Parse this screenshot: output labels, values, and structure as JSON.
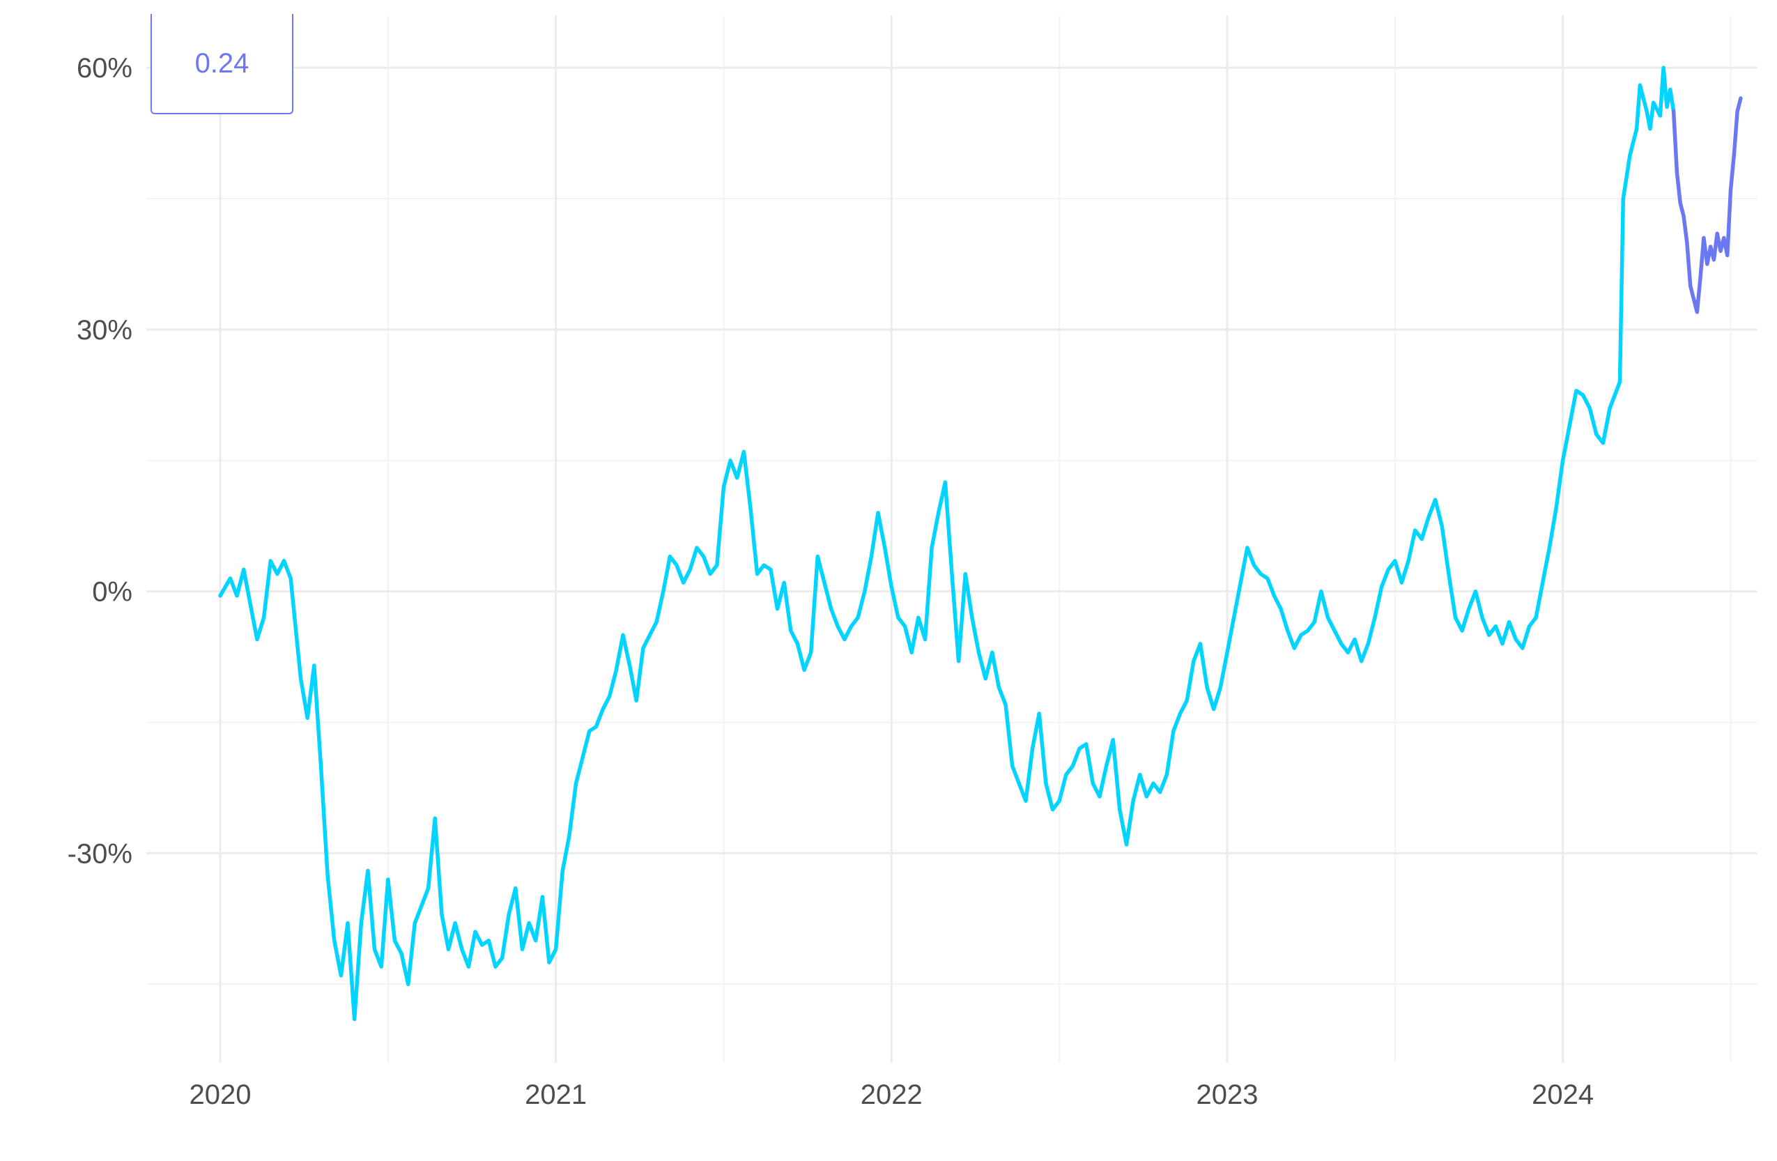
{
  "chart_data": {
    "type": "line",
    "title": "",
    "xlabel": "",
    "ylabel": "",
    "x_ticks": [
      {
        "label": "2020",
        "value": 2020.0
      },
      {
        "label": "2021",
        "value": 2021.0
      },
      {
        "label": "2022",
        "value": 2022.0
      },
      {
        "label": "2023",
        "value": 2023.0
      },
      {
        "label": "2024",
        "value": 2024.0
      }
    ],
    "y_ticks": [
      {
        "label": "-30%",
        "value": -30
      },
      {
        "label": "0%",
        "value": 0
      },
      {
        "label": "30%",
        "value": 30
      },
      {
        "label": "60%",
        "value": 60
      }
    ],
    "xlim": [
      2019.78,
      2024.58
    ],
    "ylim": [
      -54,
      66
    ],
    "grid": true,
    "legend": {
      "value_label": "0.24",
      "position": "top-left"
    },
    "series": [
      {
        "color": "#00d4ff",
        "points": [
          [
            2020.0,
            -0.5
          ],
          [
            2020.03,
            1.5
          ],
          [
            2020.05,
            -0.5
          ],
          [
            2020.07,
            2.5
          ],
          [
            2020.09,
            -1.5
          ],
          [
            2020.11,
            -5.5
          ],
          [
            2020.13,
            -3.0
          ],
          [
            2020.15,
            3.5
          ],
          [
            2020.17,
            2.0
          ],
          [
            2020.19,
            3.5
          ],
          [
            2020.21,
            1.5
          ],
          [
            2020.24,
            -10.0
          ],
          [
            2020.26,
            -14.5
          ],
          [
            2020.28,
            -8.5
          ],
          [
            2020.3,
            -20.0
          ],
          [
            2020.32,
            -32.5
          ],
          [
            2020.34,
            -40.0
          ],
          [
            2020.36,
            -44.0
          ],
          [
            2020.38,
            -38.0
          ],
          [
            2020.4,
            -49.0
          ],
          [
            2020.42,
            -38.0
          ],
          [
            2020.44,
            -32.0
          ],
          [
            2020.46,
            -41.0
          ],
          [
            2020.48,
            -43.0
          ],
          [
            2020.5,
            -33.0
          ],
          [
            2020.52,
            -40.0
          ],
          [
            2020.54,
            -41.5
          ],
          [
            2020.56,
            -45.0
          ],
          [
            2020.58,
            -38.0
          ],
          [
            2020.6,
            -36.0
          ],
          [
            2020.62,
            -34.0
          ],
          [
            2020.64,
            -26.0
          ],
          [
            2020.66,
            -37.0
          ],
          [
            2020.68,
            -41.0
          ],
          [
            2020.7,
            -38.0
          ],
          [
            2020.72,
            -41.0
          ],
          [
            2020.74,
            -43.0
          ],
          [
            2020.76,
            -39.0
          ],
          [
            2020.78,
            -40.5
          ],
          [
            2020.8,
            -40.0
          ],
          [
            2020.82,
            -43.0
          ],
          [
            2020.84,
            -42.0
          ],
          [
            2020.86,
            -37.0
          ],
          [
            2020.88,
            -34.0
          ],
          [
            2020.9,
            -41.0
          ],
          [
            2020.92,
            -38.0
          ],
          [
            2020.94,
            -40.0
          ],
          [
            2020.96,
            -35.0
          ],
          [
            2020.98,
            -42.5
          ],
          [
            2021.0,
            -41.0
          ],
          [
            2021.02,
            -32.0
          ],
          [
            2021.04,
            -28.0
          ],
          [
            2021.06,
            -22.0
          ],
          [
            2021.08,
            -19.0
          ],
          [
            2021.1,
            -16.0
          ],
          [
            2021.12,
            -15.5
          ],
          [
            2021.14,
            -13.5
          ],
          [
            2021.16,
            -12.0
          ],
          [
            2021.18,
            -9.0
          ],
          [
            2021.2,
            -5.0
          ],
          [
            2021.22,
            -8.5
          ],
          [
            2021.24,
            -12.5
          ],
          [
            2021.26,
            -6.5
          ],
          [
            2021.28,
            -5.0
          ],
          [
            2021.3,
            -3.5
          ],
          [
            2021.32,
            0.0
          ],
          [
            2021.34,
            4.0
          ],
          [
            2021.36,
            3.0
          ],
          [
            2021.38,
            1.0
          ],
          [
            2021.4,
            2.5
          ],
          [
            2021.42,
            5.0
          ],
          [
            2021.44,
            4.0
          ],
          [
            2021.46,
            2.0
          ],
          [
            2021.48,
            3.0
          ],
          [
            2021.5,
            12.0
          ],
          [
            2021.52,
            15.0
          ],
          [
            2021.54,
            13.0
          ],
          [
            2021.56,
            16.0
          ],
          [
            2021.58,
            9.5
          ],
          [
            2021.6,
            2.0
          ],
          [
            2021.62,
            3.0
          ],
          [
            2021.64,
            2.5
          ],
          [
            2021.66,
            -2.0
          ],
          [
            2021.68,
            1.0
          ],
          [
            2021.7,
            -4.5
          ],
          [
            2021.72,
            -6.0
          ],
          [
            2021.74,
            -9.0
          ],
          [
            2021.76,
            -7.0
          ],
          [
            2021.78,
            4.0
          ],
          [
            2021.8,
            1.0
          ],
          [
            2021.82,
            -2.0
          ],
          [
            2021.84,
            -4.0
          ],
          [
            2021.86,
            -5.5
          ],
          [
            2021.88,
            -4.0
          ],
          [
            2021.9,
            -3.0
          ],
          [
            2021.92,
            0.0
          ],
          [
            2021.94,
            4.0
          ],
          [
            2021.96,
            9.0
          ],
          [
            2021.98,
            5.0
          ],
          [
            2022.0,
            0.5
          ],
          [
            2022.02,
            -3.0
          ],
          [
            2022.04,
            -4.0
          ],
          [
            2022.06,
            -7.0
          ],
          [
            2022.08,
            -3.0
          ],
          [
            2022.1,
            -5.5
          ],
          [
            2022.12,
            5.0
          ],
          [
            2022.14,
            9.0
          ],
          [
            2022.16,
            12.5
          ],
          [
            2022.18,
            2.0
          ],
          [
            2022.2,
            -8.0
          ],
          [
            2022.22,
            2.0
          ],
          [
            2022.24,
            -3.0
          ],
          [
            2022.26,
            -7.0
          ],
          [
            2022.28,
            -10.0
          ],
          [
            2022.3,
            -7.0
          ],
          [
            2022.32,
            -11.0
          ],
          [
            2022.34,
            -13.0
          ],
          [
            2022.36,
            -20.0
          ],
          [
            2022.38,
            -22.0
          ],
          [
            2022.4,
            -24.0
          ],
          [
            2022.42,
            -18.0
          ],
          [
            2022.44,
            -14.0
          ],
          [
            2022.46,
            -22.0
          ],
          [
            2022.48,
            -25.0
          ],
          [
            2022.5,
            -24.0
          ],
          [
            2022.52,
            -21.0
          ],
          [
            2022.54,
            -20.0
          ],
          [
            2022.56,
            -18.0
          ],
          [
            2022.58,
            -17.5
          ],
          [
            2022.6,
            -22.0
          ],
          [
            2022.62,
            -23.5
          ],
          [
            2022.64,
            -20.0
          ],
          [
            2022.66,
            -17.0
          ],
          [
            2022.68,
            -25.0
          ],
          [
            2022.7,
            -29.0
          ],
          [
            2022.72,
            -24.0
          ],
          [
            2022.74,
            -21.0
          ],
          [
            2022.76,
            -23.5
          ],
          [
            2022.78,
            -22.0
          ],
          [
            2022.8,
            -23.0
          ],
          [
            2022.82,
            -21.0
          ],
          [
            2022.84,
            -16.0
          ],
          [
            2022.86,
            -14.0
          ],
          [
            2022.88,
            -12.5
          ],
          [
            2022.9,
            -8.0
          ],
          [
            2022.92,
            -6.0
          ],
          [
            2022.94,
            -11.0
          ],
          [
            2022.96,
            -13.5
          ],
          [
            2022.98,
            -11.0
          ],
          [
            2023.0,
            -7.0
          ],
          [
            2023.02,
            -3.0
          ],
          [
            2023.04,
            1.0
          ],
          [
            2023.06,
            5.0
          ],
          [
            2023.08,
            3.0
          ],
          [
            2023.1,
            2.0
          ],
          [
            2023.12,
            1.5
          ],
          [
            2023.14,
            -0.5
          ],
          [
            2023.16,
            -2.0
          ],
          [
            2023.18,
            -4.5
          ],
          [
            2023.2,
            -6.5
          ],
          [
            2023.22,
            -5.0
          ],
          [
            2023.24,
            -4.5
          ],
          [
            2023.26,
            -3.5
          ],
          [
            2023.28,
            0.0
          ],
          [
            2023.3,
            -3.0
          ],
          [
            2023.32,
            -4.5
          ],
          [
            2023.34,
            -6.0
          ],
          [
            2023.36,
            -7.0
          ],
          [
            2023.38,
            -5.5
          ],
          [
            2023.4,
            -8.0
          ],
          [
            2023.42,
            -6.0
          ],
          [
            2023.44,
            -3.0
          ],
          [
            2023.46,
            0.5
          ],
          [
            2023.48,
            2.5
          ],
          [
            2023.5,
            3.5
          ],
          [
            2023.52,
            1.0
          ],
          [
            2023.54,
            3.5
          ],
          [
            2023.56,
            7.0
          ],
          [
            2023.58,
            6.0
          ],
          [
            2023.6,
            8.5
          ],
          [
            2023.62,
            10.5
          ],
          [
            2023.64,
            7.5
          ],
          [
            2023.66,
            2.0
          ],
          [
            2023.68,
            -3.0
          ],
          [
            2023.7,
            -4.5
          ],
          [
            2023.72,
            -2.0
          ],
          [
            2023.74,
            0.0
          ],
          [
            2023.76,
            -3.0
          ],
          [
            2023.78,
            -5.0
          ],
          [
            2023.8,
            -4.0
          ],
          [
            2023.82,
            -6.0
          ],
          [
            2023.84,
            -3.5
          ],
          [
            2023.86,
            -5.5
          ],
          [
            2023.88,
            -6.5
          ],
          [
            2023.9,
            -4.0
          ],
          [
            2023.92,
            -3.0
          ],
          [
            2023.94,
            1.0
          ],
          [
            2023.96,
            5.0
          ],
          [
            2023.98,
            9.5
          ],
          [
            2024.0,
            15.0
          ],
          [
            2024.02,
            19.0
          ],
          [
            2024.04,
            23.0
          ],
          [
            2024.06,
            22.5
          ],
          [
            2024.08,
            21.0
          ],
          [
            2024.1,
            18.0
          ],
          [
            2024.12,
            17.0
          ],
          [
            2024.14,
            21.0
          ],
          [
            2024.16,
            23.0
          ],
          [
            2024.17,
            24.0
          ],
          [
            2024.18,
            45.0
          ],
          [
            2024.2,
            50.0
          ],
          [
            2024.22,
            53.0
          ],
          [
            2024.23,
            58.0
          ],
          [
            2024.25,
            55.0
          ],
          [
            2024.26,
            53.0
          ],
          [
            2024.27,
            56.0
          ],
          [
            2024.29,
            54.5
          ],
          [
            2024.3,
            60.0
          ],
          [
            2024.31,
            55.5
          ],
          [
            2024.32,
            57.5
          ],
          [
            2024.33,
            55.0
          ]
        ]
      },
      {
        "color": "#6b78f2",
        "points": [
          [
            2024.33,
            55.0
          ],
          [
            2024.34,
            48.0
          ],
          [
            2024.35,
            44.5
          ],
          [
            2024.36,
            43.0
          ],
          [
            2024.37,
            40.0
          ],
          [
            2024.38,
            35.0
          ],
          [
            2024.39,
            33.5
          ],
          [
            2024.4,
            32.0
          ],
          [
            2024.41,
            36.0
          ],
          [
            2024.42,
            40.5
          ],
          [
            2024.43,
            37.5
          ],
          [
            2024.44,
            39.5
          ],
          [
            2024.45,
            38.0
          ],
          [
            2024.46,
            41.0
          ],
          [
            2024.47,
            39.0
          ],
          [
            2024.48,
            40.5
          ],
          [
            2024.49,
            38.5
          ],
          [
            2024.5,
            46.0
          ],
          [
            2024.51,
            50.0
          ],
          [
            2024.52,
            55.0
          ],
          [
            2024.53,
            56.5
          ]
        ]
      }
    ]
  }
}
